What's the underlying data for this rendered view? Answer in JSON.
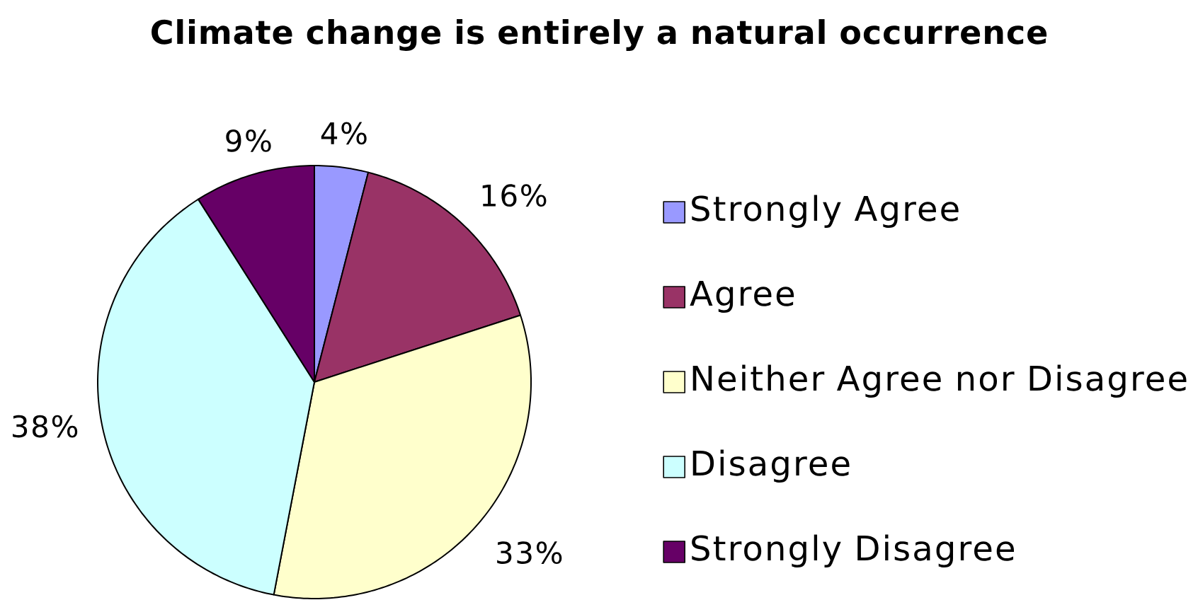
{
  "chart_data": {
    "type": "pie",
    "title": "Climate change is entirely a natural occurrence",
    "categories": [
      "Strongly Agree",
      "Agree",
      "Neither Agree nor Disagree",
      "Disagree",
      "Strongly Disagree"
    ],
    "values": [
      4,
      16,
      33,
      38,
      9
    ],
    "colors": [
      "#9999ff",
      "#993366",
      "#ffffcc",
      "#ccffff",
      "#660066"
    ],
    "value_labels": [
      "4%",
      "16%",
      "33%",
      "38%",
      "9%"
    ],
    "legend": "right"
  }
}
